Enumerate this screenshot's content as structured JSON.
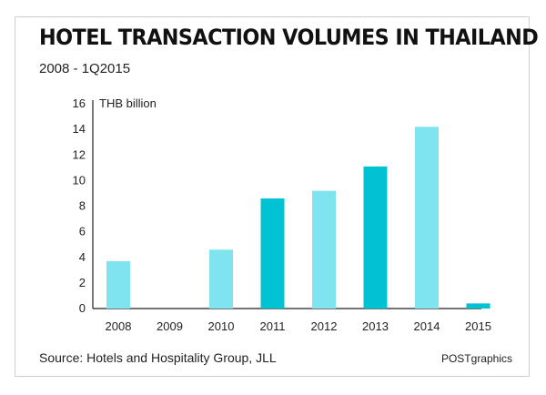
{
  "header": {
    "title": "HOTEL TRANSACTION VOLUMES IN THAILAND",
    "subtitle": "2008 - 1Q2015"
  },
  "footer": {
    "source": "Source: Hotels and Hospitality Group, JLL",
    "credit": "POSTgraphics"
  },
  "colors": {
    "light": "#7fe3f0",
    "dark": "#00c2d3"
  },
  "chart_data": {
    "type": "bar",
    "title": "HOTEL TRANSACTION VOLUMES IN THAILAND",
    "subtitle": "2008 - 1Q2015",
    "ylabel": "THB billion",
    "xlabel": "",
    "categories": [
      "2008",
      "2009",
      "2010",
      "2011",
      "2012",
      "2013",
      "2014",
      "2015"
    ],
    "values": [
      3.7,
      0,
      4.6,
      8.6,
      9.2,
      11.1,
      14.2,
      0.4
    ],
    "bar_colors": [
      "light",
      "light",
      "light",
      "dark",
      "light",
      "dark",
      "light",
      "dark"
    ],
    "ylim": [
      0,
      16
    ],
    "yticks": [
      0,
      2,
      4,
      6,
      8,
      10,
      12,
      14,
      16
    ],
    "grid": false,
    "legend": "none"
  }
}
